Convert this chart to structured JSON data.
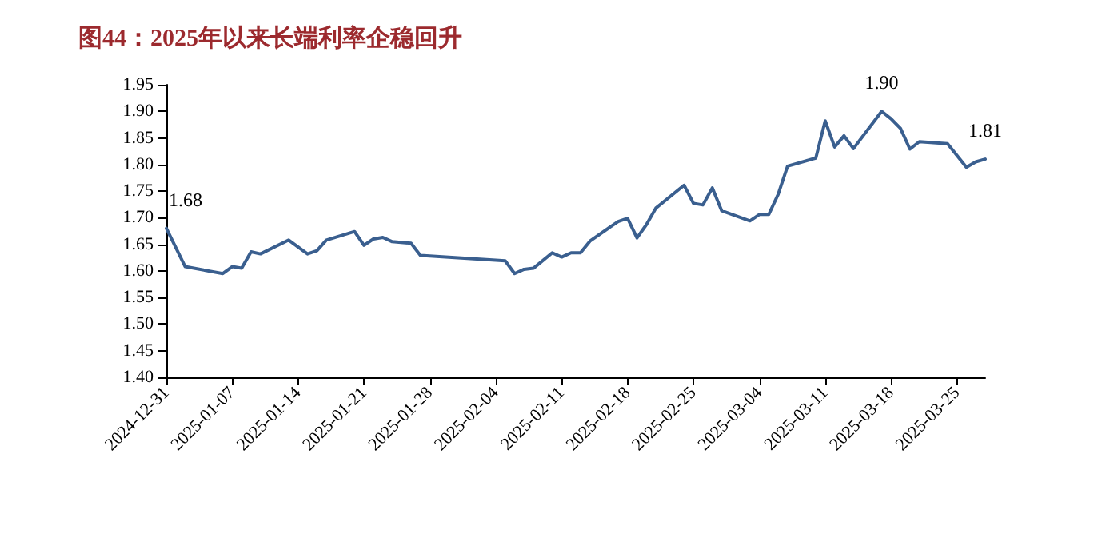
{
  "chart_data": {
    "type": "line",
    "title": "图44：2025年以来长端利率企稳回升",
    "x": [
      "2024-12-31",
      "2025-01-02",
      "2025-01-06",
      "2025-01-07",
      "2025-01-08",
      "2025-01-09",
      "2025-01-10",
      "2025-01-13",
      "2025-01-15",
      "2025-01-16",
      "2025-01-17",
      "2025-01-20",
      "2025-01-21",
      "2025-01-22",
      "2025-01-23",
      "2025-01-24",
      "2025-01-26",
      "2025-01-27",
      "2025-02-05",
      "2025-02-06",
      "2025-02-07",
      "2025-02-08",
      "2025-02-10",
      "2025-02-11",
      "2025-02-12",
      "2025-02-13",
      "2025-02-14",
      "2025-02-17",
      "2025-02-18",
      "2025-02-19",
      "2025-02-20",
      "2025-02-21",
      "2025-02-24",
      "2025-02-25",
      "2025-02-26",
      "2025-02-27",
      "2025-02-28",
      "2025-03-03",
      "2025-03-04",
      "2025-03-05",
      "2025-03-06",
      "2025-03-07",
      "2025-03-10",
      "2025-03-11",
      "2025-03-12",
      "2025-03-13",
      "2025-03-14",
      "2025-03-17",
      "2025-03-18",
      "2025-03-19",
      "2025-03-20",
      "2025-03-21",
      "2025-03-24",
      "2025-03-26",
      "2025-03-27",
      "2025-03-28"
    ],
    "series": [
      {
        "color": "#3a5f8f",
        "values": [
          1.68,
          1.608,
          1.595,
          1.608,
          1.605,
          1.636,
          1.632,
          1.658,
          1.632,
          1.638,
          1.658,
          1.674,
          1.648,
          1.66,
          1.663,
          1.655,
          1.652,
          1.629,
          1.619,
          1.595,
          1.603,
          1.605,
          1.634,
          1.626,
          1.634,
          1.634,
          1.656,
          1.693,
          1.699,
          1.662,
          1.687,
          1.718,
          1.761,
          1.727,
          1.724,
          1.756,
          1.713,
          1.694,
          1.706,
          1.706,
          1.744,
          1.797,
          1.812,
          1.882,
          1.833,
          1.854,
          1.83,
          1.9,
          1.886,
          1.868,
          1.829,
          1.843,
          1.839,
          1.795,
          1.805,
          1.81
        ]
      }
    ],
    "annotations": [
      {
        "text": "1.68",
        "x": "2024-12-31",
        "y": 1.68
      },
      {
        "text": "1.90",
        "x": "2025-03-17",
        "y": 1.9
      },
      {
        "text": "1.81",
        "x": "2025-03-28",
        "y": 1.81
      }
    ],
    "xlim": [
      "2024-12-31",
      "2025-03-28"
    ],
    "xticks": [
      "2024-12-31",
      "2025-01-07",
      "2025-01-14",
      "2025-01-21",
      "2025-01-28",
      "2025-02-04",
      "2025-02-11",
      "2025-02-18",
      "2025-02-25",
      "2025-03-04",
      "2025-03-11",
      "2025-03-18",
      "2025-03-25"
    ],
    "ylim": [
      1.4,
      1.95
    ],
    "yticks": [
      {
        "value": 1.4,
        "label": "1.40"
      },
      {
        "value": 1.45,
        "label": "1.45"
      },
      {
        "value": 1.5,
        "label": "1.50"
      },
      {
        "value": 1.55,
        "label": "1.55"
      },
      {
        "value": 1.6,
        "label": "1.60"
      },
      {
        "value": 1.65,
        "label": "1.65"
      },
      {
        "value": 1.7,
        "label": "1.70"
      },
      {
        "value": 1.75,
        "label": "1.75"
      },
      {
        "value": 1.8,
        "label": "1.80"
      },
      {
        "value": 1.85,
        "label": "1.85"
      },
      {
        "value": 1.9,
        "label": "1.90"
      },
      {
        "value": 1.95,
        "label": "1.95"
      }
    ],
    "grid": false,
    "marker": "none",
    "line_style": "solid"
  }
}
